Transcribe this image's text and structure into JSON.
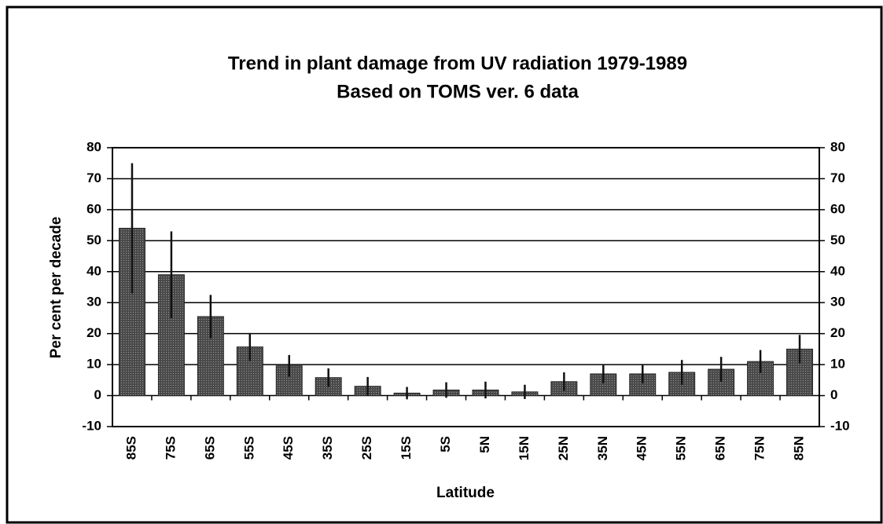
{
  "chart_data": {
    "type": "bar",
    "title": "Trend in plant damage from UV radiation 1979-1989",
    "subtitle": "Based on TOMS ver. 6 data",
    "y_label": "Per cent per decade",
    "x_label": "Latitude",
    "categories": [
      "85S",
      "75S",
      "65S",
      "55S",
      "45S",
      "35S",
      "25S",
      "15S",
      "5S",
      "5N",
      "15N",
      "25N",
      "35N",
      "45N",
      "55N",
      "65N",
      "75N",
      "85N"
    ],
    "values": [
      54,
      39,
      25.5,
      15.7,
      9.6,
      5.8,
      3,
      0.8,
      1.8,
      1.8,
      1.2,
      4.5,
      7,
      7,
      7.5,
      8.5,
      11,
      15
    ],
    "errors": [
      21,
      14,
      7,
      4.5,
      3.5,
      3,
      3,
      2,
      2.5,
      2.7,
      2.3,
      3,
      3,
      3,
      4,
      4,
      3.7,
      4.6
    ],
    "color": "#4a4a4a",
    "ylim": [
      -10,
      80
    ],
    "yticks": [
      -10,
      0,
      10,
      20,
      30,
      40,
      50,
      60,
      70,
      80
    ],
    "y2lim": [
      -10,
      80
    ],
    "y2ticks": [
      -10,
      0,
      10,
      20,
      30,
      40,
      50,
      60,
      70,
      80
    ],
    "grid": true
  }
}
